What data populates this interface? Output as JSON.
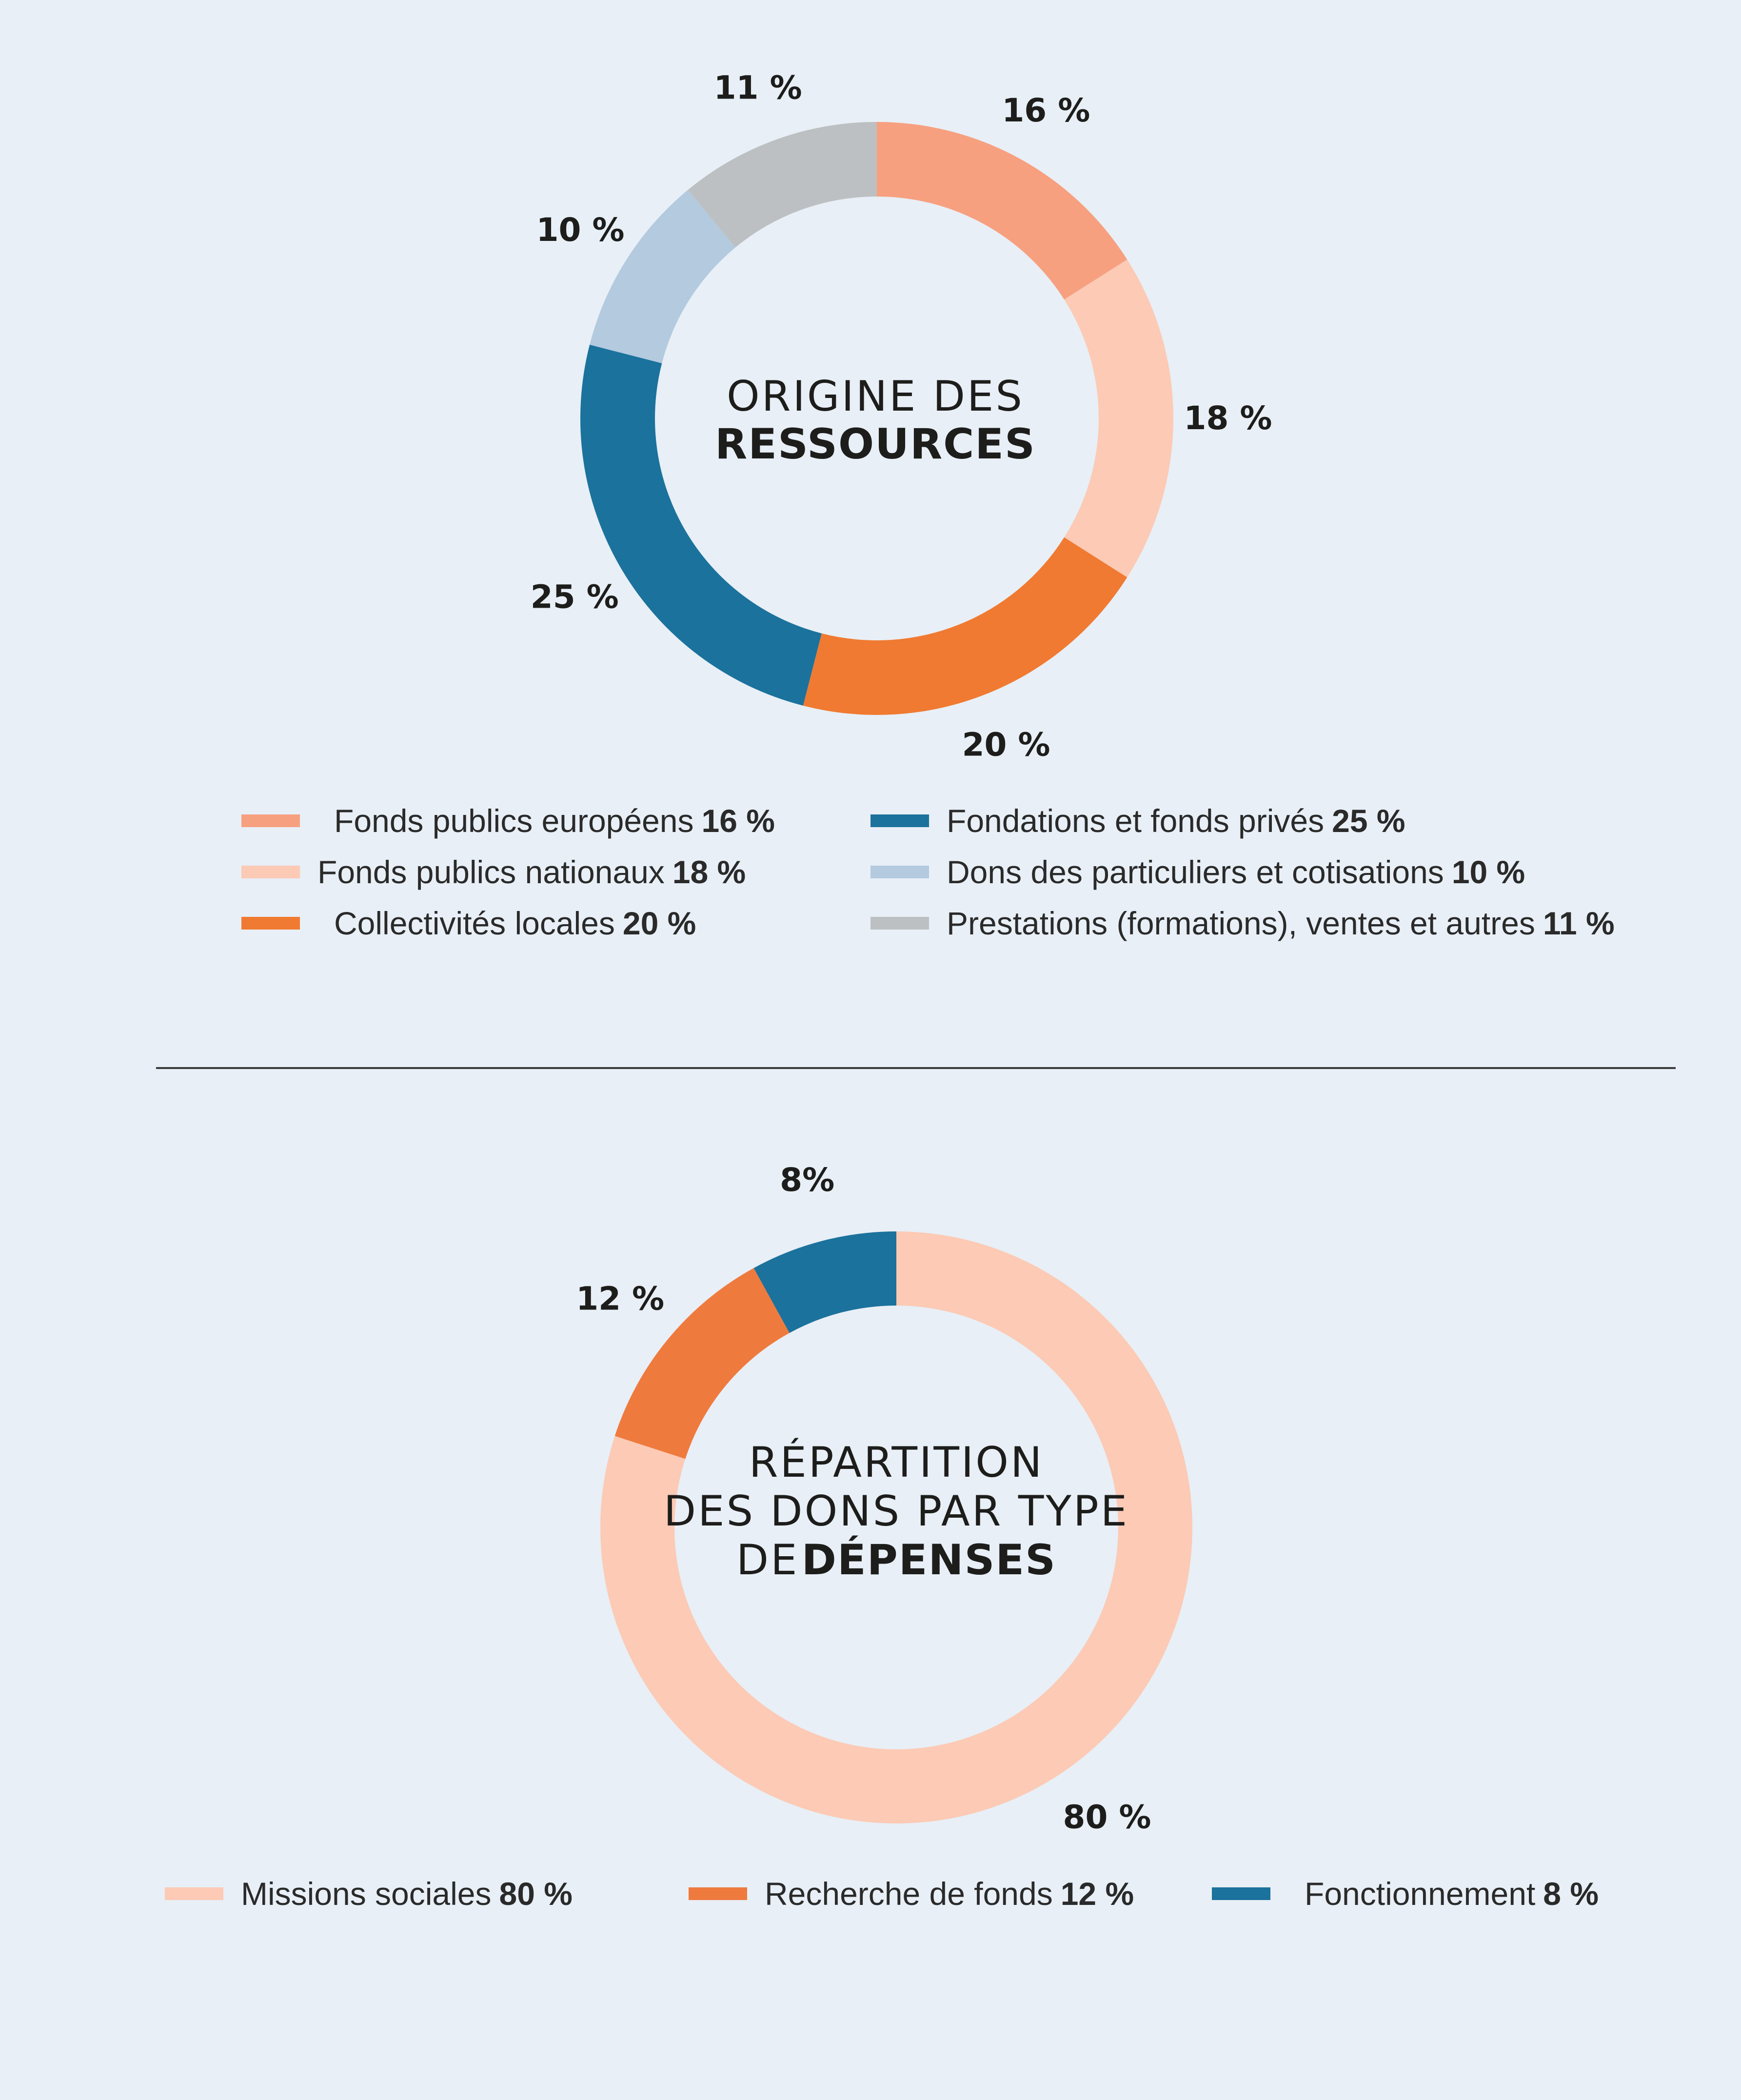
{
  "charts": {
    "resources": {
      "title_light": "ORIGINE DES",
      "title_bold": "RESSOURCES"
    },
    "expenses": {
      "title_line1": "RÉPARTITION",
      "title_line2": "DES DONS PAR TYPE",
      "title_line3_light": "DE",
      "title_line3_bold": "DÉPENSES"
    }
  },
  "legend1": [
    {
      "label": "Fonds publics européens",
      "value": "16 %",
      "color": "#f7a07f"
    },
    {
      "label": "Fonds publics nationaux",
      "value": "18 %",
      "color": "#fccab5"
    },
    {
      "label": "Collectivités locales",
      "value": "20 %",
      "color": "#f07a31"
    },
    {
      "label": "Fondations et fonds privés",
      "value": "25 %",
      "color": "#1b729c"
    },
    {
      "label": "Dons des particuliers et cotisations",
      "value": "10 %",
      "color": "#b3cadf"
    },
    {
      "label": "Prestations (formations), ventes et autres",
      "value": "11 %",
      "color": "#bdc0c2"
    }
  ],
  "legend2": [
    {
      "label": "Missions sociales",
      "value": "80 %",
      "color": "#fccab5"
    },
    {
      "label": "Recherche de fonds",
      "value": "12 %",
      "color": "#ef7a3e"
    },
    {
      "label": "Fonctionnement",
      "value": "8 %",
      "color": "#1b729c"
    }
  ],
  "chart_data": [
    {
      "type": "pie",
      "title": "ORIGINE DES RESSOURCES",
      "categories": [
        "Fonds publics européens",
        "Fonds publics nationaux",
        "Collectivités locales",
        "Fondations et fonds privés",
        "Dons des particuliers et cotisations",
        "Prestations (formations), ventes et autres"
      ],
      "values": [
        16,
        18,
        20,
        25,
        10,
        11
      ],
      "data_labels": [
        "16 %",
        "18 %",
        "20 %",
        "25 %",
        "10 %",
        "11 %"
      ],
      "colors": [
        "#f7a07f",
        "#fccab5",
        "#f07a31",
        "#1b729c",
        "#b3cadf",
        "#bdc0c2"
      ]
    },
    {
      "type": "pie",
      "title": "RÉPARTITION DES DONS PAR TYPE DE DÉPENSES",
      "categories": [
        "Missions sociales",
        "Recherche de fonds",
        "Fonctionnement"
      ],
      "values": [
        80,
        12,
        8
      ],
      "data_labels": [
        "80 %",
        "12 %",
        "8%"
      ],
      "colors": [
        "#fccab5",
        "#ef7a3e",
        "#1b729c"
      ]
    }
  ]
}
